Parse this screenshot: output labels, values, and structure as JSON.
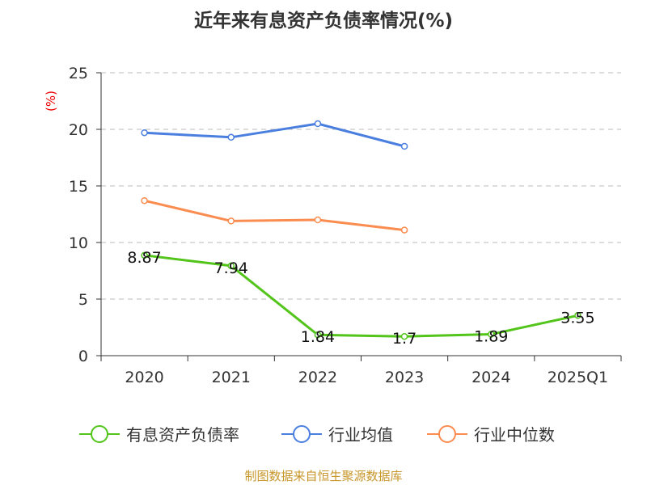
{
  "chart_data": {
    "type": "line",
    "title": "近年来有息资产负债率情况(%)",
    "ylabel": "(%)",
    "xlabel": "",
    "categories": [
      "2020",
      "2021",
      "2022",
      "2023",
      "2024",
      "2025Q1"
    ],
    "ylim": [
      0,
      25
    ],
    "yticks": [
      0,
      5,
      10,
      15,
      20,
      25
    ],
    "grid": true,
    "legend_position": "bottom",
    "series": [
      {
        "name": "有息资产负债率",
        "color": "#52c41a",
        "values": [
          8.87,
          7.94,
          1.84,
          1.7,
          1.89,
          3.55
        ],
        "labels": [
          "8.87",
          "7.94",
          "1.84",
          "1.7",
          "1.89",
          "3.55"
        ]
      },
      {
        "name": "行业均值",
        "color": "#4a7fe0",
        "values": [
          19.7,
          19.3,
          20.5,
          18.5,
          null,
          null
        ]
      },
      {
        "name": "行业中位数",
        "color": "#fa8c50",
        "values": [
          13.7,
          11.9,
          12.0,
          11.1,
          null,
          null
        ]
      }
    ],
    "source": "制图数据来自恒生聚源数据库"
  }
}
